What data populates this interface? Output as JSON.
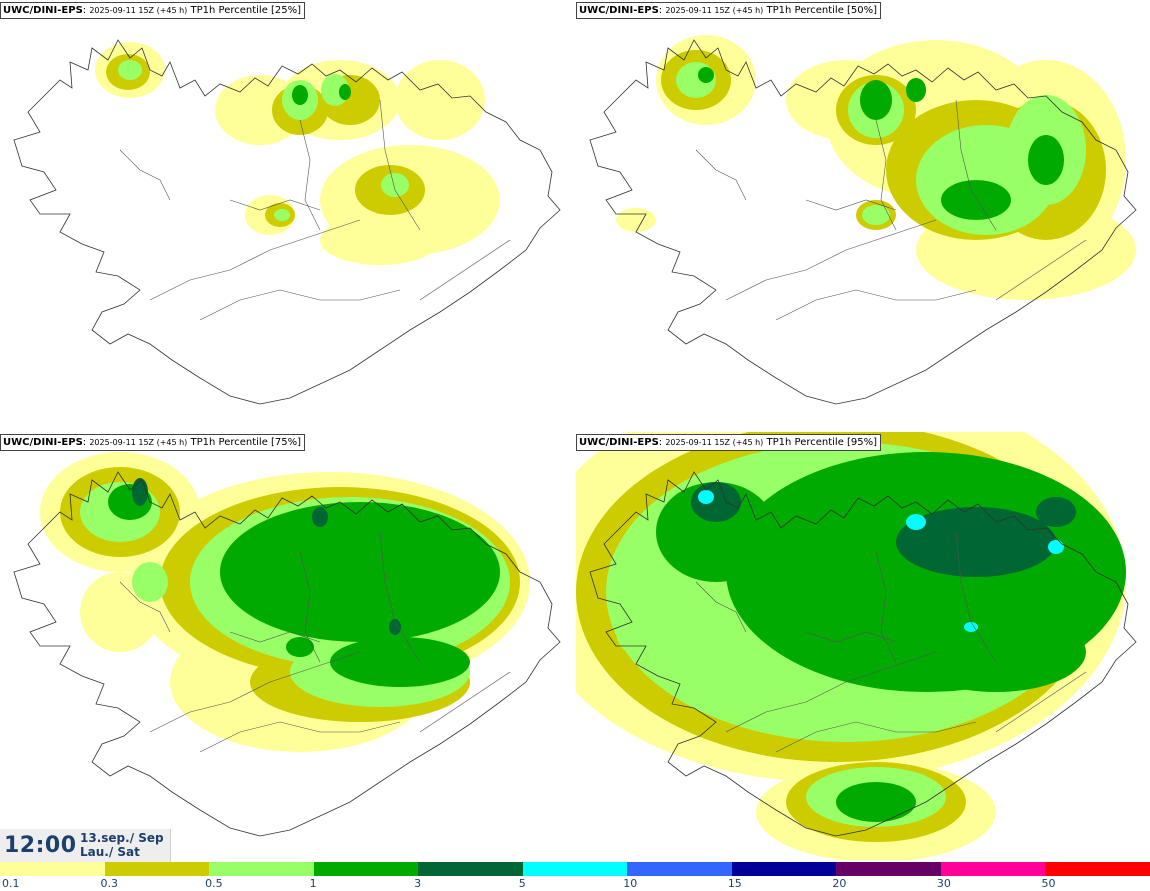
{
  "panels": [
    {
      "model": "UWC/DINI-EPS",
      "run": "2025-09-11 15Z (+45 h)",
      "product": "TP1h Percentile [25%]"
    },
    {
      "model": "UWC/DINI-EPS",
      "run": "2025-09-11 15Z (+45 h)",
      "product": "TP1h Percentile [50%]"
    },
    {
      "model": "UWC/DINI-EPS",
      "run": "2025-09-11 15Z (+45 h)",
      "product": "TP1h Percentile [75%]"
    },
    {
      "model": "UWC/DINI-EPS",
      "run": "2025-09-11 15Z (+45 h)",
      "product": "TP1h Percentile [95%]"
    }
  ],
  "valid_time": {
    "time": "12:00",
    "date_line1": "13.sep./ Sep",
    "date_line2": "Lau./ Sat"
  },
  "legend": {
    "colors": [
      "#ffff99",
      "#cccc00",
      "#99ff66",
      "#00aa00",
      "#006633",
      "#00ffff",
      "#3366ff",
      "#000099",
      "#660066",
      "#ff0099",
      "#ff0000"
    ],
    "labels": [
      "0.1",
      "0.3",
      "0.5",
      "1",
      "3",
      "5",
      "10",
      "15",
      "20",
      "30",
      "50"
    ]
  }
}
